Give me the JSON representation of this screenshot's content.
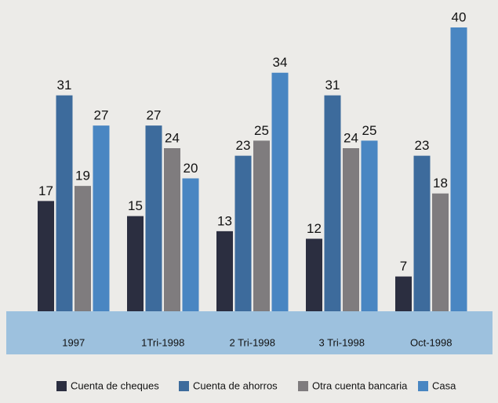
{
  "chart_data": {
    "type": "bar",
    "categories": [
      "1997",
      "1Tri-1998",
      "2 Tri-1998",
      "3 Tri-1998",
      "Oct-1998"
    ],
    "series": [
      {
        "name": "Cuenta de cheques",
        "color": "#2b2e40",
        "values": [
          17,
          15,
          13,
          12,
          7
        ]
      },
      {
        "name": "Cuenta de ahorros",
        "color": "#3d6b9c",
        "values": [
          31,
          27,
          23,
          31,
          23
        ]
      },
      {
        "name": "Otra cuenta bancaria",
        "color": "#7f7c7e",
        "values": [
          19,
          24,
          25,
          24,
          18
        ]
      },
      {
        "name": "Casa",
        "color": "#4986c2",
        "values": [
          27,
          20,
          34,
          25,
          40
        ]
      }
    ]
  }
}
